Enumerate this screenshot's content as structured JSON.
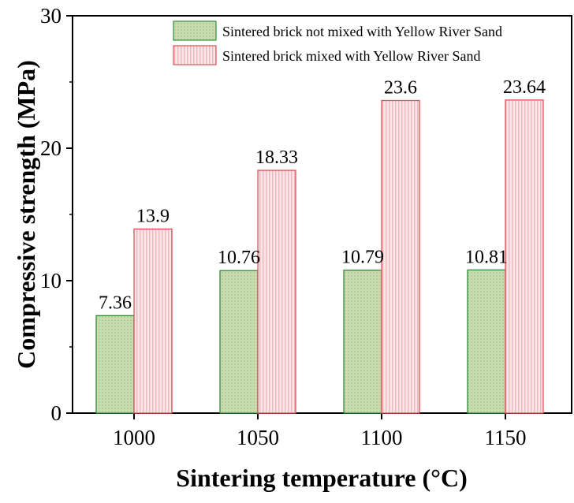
{
  "chart_data": {
    "type": "bar",
    "title": "",
    "xlabel": "Sintering temperature (°C)",
    "ylabel": "Compressive strength (MPa)",
    "categories": [
      "1000",
      "1050",
      "1100",
      "1150"
    ],
    "ylim": [
      0,
      30
    ],
    "yticks": [
      "0",
      "10",
      "20",
      "30"
    ],
    "grid": false,
    "legend_position": "top-right",
    "series": [
      {
        "name": "Sintered brick not mixed with Yellow River Sand",
        "values": [
          7.36,
          10.76,
          10.79,
          10.81
        ],
        "labels": [
          "7.36",
          "10.76",
          "10.79",
          "10.81"
        ],
        "fill_color": "#c9dcb0",
        "edge_color": "#2e8b3a",
        "pattern": "dots"
      },
      {
        "name": "Sintered brick mixed with Yellow River Sand",
        "values": [
          13.9,
          18.33,
          23.6,
          23.64
        ],
        "labels": [
          "13.9",
          "18.33",
          "23.6",
          "23.64"
        ],
        "fill_color": "#fbd9dc",
        "edge_color": "#e0505a",
        "pattern": "vertical-lines"
      }
    ]
  }
}
